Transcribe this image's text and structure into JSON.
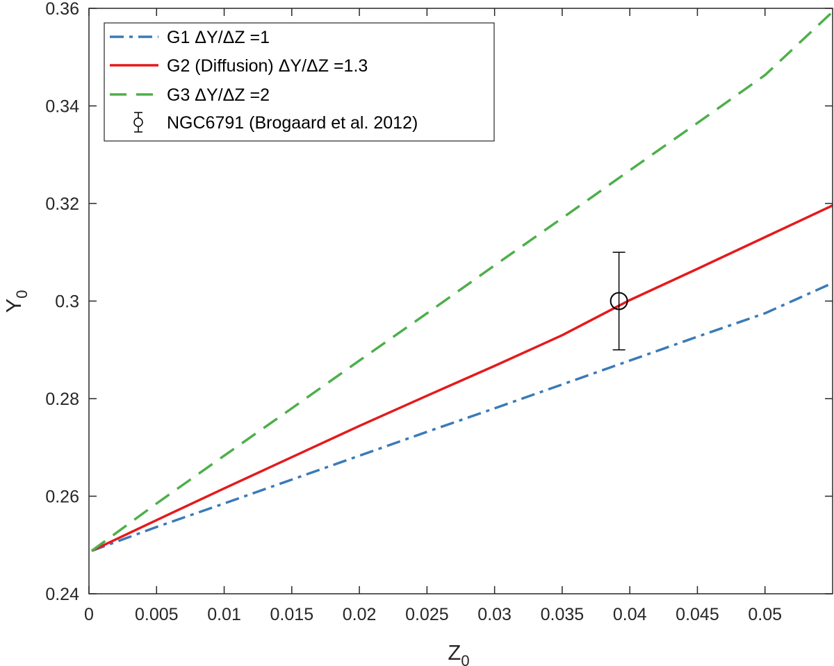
{
  "chart_data": {
    "type": "line",
    "xlim": [
      0,
      0.055
    ],
    "ylim": [
      0.24,
      0.36
    ],
    "x_ticks": [
      0,
      0.005,
      0.01,
      0.015,
      0.02,
      0.025,
      0.03,
      0.035,
      0.04,
      0.045,
      0.05
    ],
    "x_tick_labels": [
      "0",
      "0.005",
      "0.01",
      "0.015",
      "0.02",
      "0.025",
      "0.03",
      "0.035",
      "0.04",
      "0.045",
      "0.05"
    ],
    "y_ticks": [
      0.24,
      0.26,
      0.28,
      0.3,
      0.32,
      0.34,
      0.36
    ],
    "y_tick_labels": [
      "0.24",
      "0.26",
      "0.28",
      "0.3",
      "0.32",
      "0.34",
      "0.36"
    ],
    "xlabel": {
      "main": "Z",
      "sub": "0"
    },
    "ylabel": {
      "main": "Y",
      "sub": "0"
    },
    "grid": false,
    "legend_position": "top-left",
    "series": [
      {
        "name": "G1 ΔY/ΔZ =1",
        "color": "#3a7ab8",
        "style": "dashdot",
        "x": [
          0.0002,
          0.005,
          0.01,
          0.015,
          0.02,
          0.025,
          0.03,
          0.035,
          0.04,
          0.045,
          0.05,
          0.055
        ],
        "y": [
          0.2488,
          0.2537,
          0.2585,
          0.2634,
          0.2683,
          0.2732,
          0.278,
          0.2829,
          0.2878,
          0.2927,
          0.2975,
          0.3037
        ]
      },
      {
        "name": "G2 (Diffusion) ΔY/ΔZ =1.3",
        "color": "#e41a1c",
        "style": "solid",
        "x": [
          0.0002,
          0.005,
          0.01,
          0.015,
          0.02,
          0.025,
          0.03,
          0.035,
          0.04,
          0.045,
          0.05,
          0.055
        ],
        "y": [
          0.2488,
          0.2551,
          0.2616,
          0.268,
          0.2744,
          0.2806,
          0.2867,
          0.293,
          0.3002,
          0.3066,
          0.3131,
          0.3196
        ]
      },
      {
        "name": "G3 ΔY/ΔZ =2",
        "color": "#4daf4a",
        "style": "dashed",
        "x": [
          0.0002,
          0.005,
          0.01,
          0.015,
          0.02,
          0.025,
          0.03,
          0.035,
          0.04,
          0.045,
          0.05,
          0.055
        ],
        "y": [
          0.2488,
          0.2585,
          0.2683,
          0.278,
          0.2878,
          0.2975,
          0.3073,
          0.317,
          0.3268,
          0.3365,
          0.3463,
          0.3593
        ]
      }
    ],
    "points": [
      {
        "name": "NGC6791 (Brogaard et al. 2012)",
        "x": 0.0392,
        "y": 0.3,
        "y_err": 0.01,
        "color": "#000000",
        "marker": "circle-open"
      }
    ]
  }
}
